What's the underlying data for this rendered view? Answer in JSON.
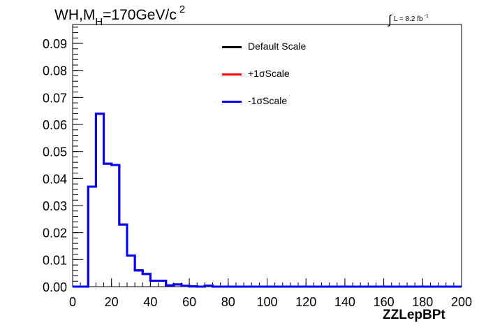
{
  "header": {
    "title_prefix": "WH,M",
    "title_sub": "H",
    "title_value": "=170GeV/c",
    "title_sup": "2",
    "lumi_integral": "∫",
    "lumi_text": "L = 8.2 fb",
    "lumi_sup": "-1"
  },
  "legend": {
    "entries": [
      {
        "label": "Default Scale",
        "color": "#000000"
      },
      {
        "label": "+1σScale",
        "color": "#ff0000"
      },
      {
        "label": "-1σScale",
        "color": "#0000ff"
      }
    ]
  },
  "chart_data": {
    "type": "line",
    "subtype": "step-histogram",
    "xlabel": "ZZLepBPt",
    "ylabel": "",
    "xlim": [
      0,
      200
    ],
    "ylim": [
      0,
      0.097
    ],
    "x_ticks": [
      0,
      20,
      40,
      60,
      80,
      100,
      120,
      140,
      160,
      180,
      200
    ],
    "y_ticks": [
      0.0,
      0.01,
      0.02,
      0.03,
      0.04,
      0.05,
      0.06,
      0.07,
      0.08,
      0.09
    ],
    "y_tick_labels": [
      "0.00",
      "0.01",
      "0.02",
      "0.03",
      "0.04",
      "0.05",
      "0.06",
      "0.07",
      "0.08",
      "0.09"
    ],
    "bin_edges": [
      0,
      4,
      8,
      12,
      16,
      20,
      24,
      28,
      32,
      36,
      40,
      44,
      48,
      52,
      56,
      60,
      64,
      68,
      72,
      76,
      80,
      84,
      88,
      92,
      96,
      100,
      104,
      108,
      112,
      116,
      120,
      124,
      128,
      132,
      136,
      140,
      144,
      148,
      152,
      156,
      160,
      164,
      168,
      172,
      176,
      180,
      184,
      188,
      192,
      196,
      200
    ],
    "series": [
      {
        "name": "Default Scale",
        "color": "#000000",
        "values": [
          0,
          0,
          0.037,
          0.064,
          0.0455,
          0.045,
          0.023,
          0.0115,
          0.006,
          0.0047,
          0.0022,
          0.0022,
          0.0005,
          0.0008,
          0.0003,
          0.0001,
          0,
          0.0004,
          0,
          0,
          0,
          0,
          0,
          0,
          0,
          0,
          0,
          0,
          0,
          0,
          0,
          0,
          0,
          0,
          0,
          0,
          0,
          0,
          0,
          0,
          0,
          0,
          0,
          0,
          0,
          0,
          0,
          0,
          0,
          0
        ]
      },
      {
        "name": "+1σScale",
        "color": "#ff0000",
        "values": [
          0,
          0,
          0.037,
          0.064,
          0.0455,
          0.045,
          0.023,
          0.0115,
          0.006,
          0.0047,
          0.0022,
          0.0022,
          0.0005,
          0.0008,
          0.0003,
          0.0001,
          0,
          0.0004,
          0,
          0,
          0,
          0,
          0,
          0,
          0,
          0,
          0,
          0,
          0,
          0,
          0,
          0,
          0,
          0,
          0,
          0,
          0,
          0,
          0,
          0,
          0,
          0,
          0,
          0,
          0,
          0,
          0,
          0,
          0,
          0
        ]
      },
      {
        "name": "-1σScale",
        "color": "#0000ff",
        "values": [
          0,
          0,
          0.037,
          0.064,
          0.0455,
          0.045,
          0.023,
          0.0115,
          0.006,
          0.0047,
          0.0022,
          0.0022,
          0.0005,
          0.0008,
          0.0003,
          0.0001,
          0,
          0.0004,
          0,
          0,
          0,
          0,
          0,
          0,
          0,
          0,
          0,
          0,
          0,
          0,
          0,
          0,
          0,
          0,
          0,
          0,
          0,
          0,
          0,
          0,
          0,
          0,
          0,
          0,
          0,
          0,
          0,
          0,
          0,
          0
        ]
      }
    ],
    "grid": false,
    "legend_position": "top-center"
  }
}
